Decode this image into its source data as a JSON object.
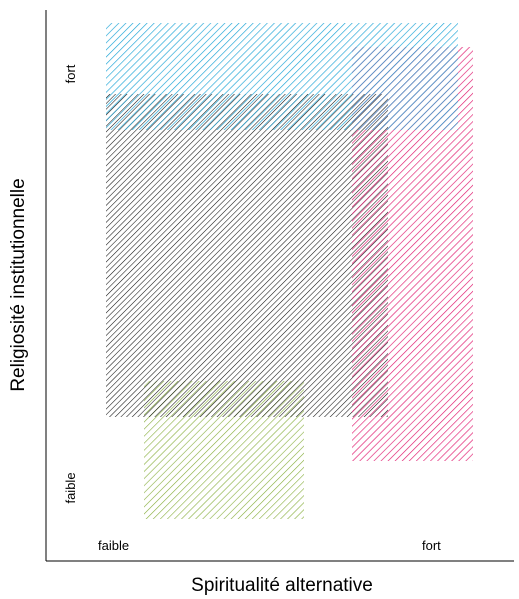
{
  "axes": {
    "x_title": "Spiritualité alternative",
    "y_title": "Religiosité institutionnelle",
    "x_low": "faible",
    "x_high": "fort",
    "y_low": "faible",
    "y_high": "fort"
  },
  "regions": [
    {
      "id": "blue",
      "color": "#1aa3d6"
    },
    {
      "id": "black",
      "color": "#111111"
    },
    {
      "id": "pink",
      "color": "#e0186e"
    },
    {
      "id": "green",
      "color": "#86ad3a"
    }
  ]
}
